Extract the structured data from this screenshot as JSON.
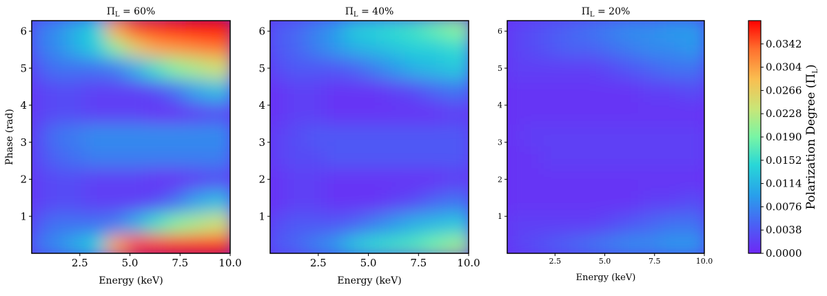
{
  "chart_data": {
    "type": "heatmap",
    "shared": {
      "xlabel": "Energy (keV)",
      "ylabel": "Phase (rad)",
      "xlim": [
        0.1,
        10.0
      ],
      "ylim": [
        0.0,
        6.283
      ],
      "colorbar": {
        "label": "Polarization Degree (Π",
        "label_sub": "L",
        "label_close": ")",
        "range": [
          0.0,
          0.038
        ],
        "colormap": "rainbow",
        "ticks": [
          "0.0000",
          "0.0038",
          "0.0076",
          "0.0114",
          "0.0152",
          "0.0190",
          "0.0228",
          "0.0266",
          "0.0304",
          "0.0342"
        ]
      },
      "energy_keV": [
        0.5,
        1.5,
        2.5,
        3.5,
        4.5,
        5.5,
        6.5,
        7.5,
        8.5,
        9.5
      ],
      "phase_rad": [
        0.3,
        0.9,
        1.5,
        2.1,
        2.7,
        3.3,
        3.9,
        4.5,
        5.1,
        5.7,
        6.1
      ]
    },
    "panels": [
      {
        "title_prefix": "Π",
        "title_sub": "L",
        "title_suffix": " = 60%",
        "pol_level": 0.6,
        "xticks": [
          "2.5",
          "5.0",
          "7.5",
          "10.0"
        ],
        "yticks": [
          "1",
          "2",
          "3",
          "4",
          "5",
          "6"
        ],
        "values": [
          [
            0.006,
            0.008,
            0.011,
            0.014,
            0.03,
            0.036,
            0.037,
            0.038,
            0.038,
            0.038
          ],
          [
            0.004,
            0.006,
            0.006,
            0.006,
            0.007,
            0.011,
            0.016,
            0.02,
            0.022,
            0.024
          ],
          [
            0.002,
            0.003,
            0.003,
            0.002,
            0.002,
            0.002,
            0.003,
            0.006,
            0.01,
            0.012
          ],
          [
            0.002,
            0.003,
            0.003,
            0.002,
            0.002,
            0.002,
            0.001,
            0.001,
            0.002,
            0.003
          ],
          [
            0.003,
            0.005,
            0.006,
            0.007,
            0.007,
            0.007,
            0.007,
            0.007,
            0.007,
            0.007
          ],
          [
            0.003,
            0.006,
            0.007,
            0.008,
            0.008,
            0.008,
            0.008,
            0.008,
            0.008,
            0.008
          ],
          [
            0.002,
            0.003,
            0.003,
            0.002,
            0.002,
            0.002,
            0.001,
            0.001,
            0.002,
            0.003
          ],
          [
            0.002,
            0.003,
            0.003,
            0.002,
            0.002,
            0.002,
            0.003,
            0.006,
            0.01,
            0.012
          ],
          [
            0.004,
            0.006,
            0.006,
            0.006,
            0.007,
            0.011,
            0.016,
            0.02,
            0.022,
            0.024
          ],
          [
            0.006,
            0.008,
            0.011,
            0.014,
            0.02,
            0.026,
            0.03,
            0.031,
            0.032,
            0.033
          ],
          [
            0.006,
            0.008,
            0.011,
            0.014,
            0.03,
            0.035,
            0.036,
            0.037,
            0.038,
            0.038
          ]
        ]
      },
      {
        "title_prefix": "Π",
        "title_sub": "L",
        "title_suffix": " = 40%",
        "pol_level": 0.4,
        "xticks": [
          "2.5",
          "5.0",
          "7.5",
          "10.0"
        ],
        "yticks": [
          "1",
          "2",
          "3",
          "4",
          "5",
          "6"
        ],
        "values": [
          [
            0.004,
            0.005,
            0.007,
            0.009,
            0.013,
            0.015,
            0.016,
            0.017,
            0.019,
            0.021
          ],
          [
            0.003,
            0.004,
            0.004,
            0.004,
            0.005,
            0.007,
            0.009,
            0.011,
            0.012,
            0.013
          ],
          [
            0.001,
            0.002,
            0.002,
            0.001,
            0.001,
            0.001,
            0.002,
            0.003,
            0.005,
            0.006
          ],
          [
            0.001,
            0.002,
            0.002,
            0.001,
            0.001,
            0.001,
            0.001,
            0.001,
            0.001,
            0.002
          ],
          [
            0.002,
            0.003,
            0.003,
            0.004,
            0.004,
            0.004,
            0.004,
            0.004,
            0.004,
            0.004
          ],
          [
            0.002,
            0.003,
            0.004,
            0.004,
            0.004,
            0.004,
            0.004,
            0.004,
            0.004,
            0.004
          ],
          [
            0.001,
            0.002,
            0.002,
            0.001,
            0.001,
            0.001,
            0.001,
            0.001,
            0.001,
            0.002
          ],
          [
            0.001,
            0.002,
            0.002,
            0.001,
            0.001,
            0.001,
            0.002,
            0.003,
            0.005,
            0.006
          ],
          [
            0.003,
            0.004,
            0.004,
            0.004,
            0.005,
            0.007,
            0.009,
            0.011,
            0.012,
            0.013
          ],
          [
            0.004,
            0.005,
            0.007,
            0.009,
            0.011,
            0.012,
            0.013,
            0.014,
            0.014,
            0.015
          ],
          [
            0.004,
            0.005,
            0.007,
            0.009,
            0.013,
            0.014,
            0.015,
            0.016,
            0.018,
            0.02
          ]
        ]
      },
      {
        "title_prefix": "Π",
        "title_sub": "L",
        "title_suffix": " = 20%",
        "pol_level": 0.2,
        "xticks": [
          "2.5",
          "5.0",
          "7.5",
          "10.0"
        ],
        "yticks": [
          "1",
          "2",
          "3",
          "4",
          "5",
          "6"
        ],
        "values": [
          [
            0.002,
            0.003,
            0.004,
            0.005,
            0.006,
            0.007,
            0.008,
            0.008,
            0.009,
            0.009
          ],
          [
            0.002,
            0.002,
            0.002,
            0.002,
            0.002,
            0.003,
            0.004,
            0.005,
            0.006,
            0.006
          ],
          [
            0.001,
            0.001,
            0.001,
            0.001,
            0.001,
            0.001,
            0.001,
            0.002,
            0.002,
            0.003
          ],
          [
            0.001,
            0.001,
            0.001,
            0.001,
            0.001,
            0.001,
            0.001,
            0.001,
            0.001,
            0.001
          ],
          [
            0.001,
            0.001,
            0.002,
            0.002,
            0.002,
            0.002,
            0.002,
            0.002,
            0.002,
            0.002
          ],
          [
            0.001,
            0.002,
            0.002,
            0.002,
            0.002,
            0.002,
            0.002,
            0.002,
            0.002,
            0.002
          ],
          [
            0.001,
            0.001,
            0.001,
            0.001,
            0.001,
            0.001,
            0.001,
            0.001,
            0.001,
            0.001
          ],
          [
            0.001,
            0.001,
            0.001,
            0.001,
            0.001,
            0.001,
            0.001,
            0.002,
            0.002,
            0.003
          ],
          [
            0.002,
            0.002,
            0.002,
            0.002,
            0.002,
            0.003,
            0.004,
            0.005,
            0.006,
            0.006
          ],
          [
            0.002,
            0.003,
            0.004,
            0.005,
            0.005,
            0.006,
            0.007,
            0.008,
            0.008,
            0.009
          ],
          [
            0.002,
            0.003,
            0.004,
            0.005,
            0.006,
            0.007,
            0.008,
            0.008,
            0.009,
            0.009
          ]
        ]
      }
    ]
  }
}
